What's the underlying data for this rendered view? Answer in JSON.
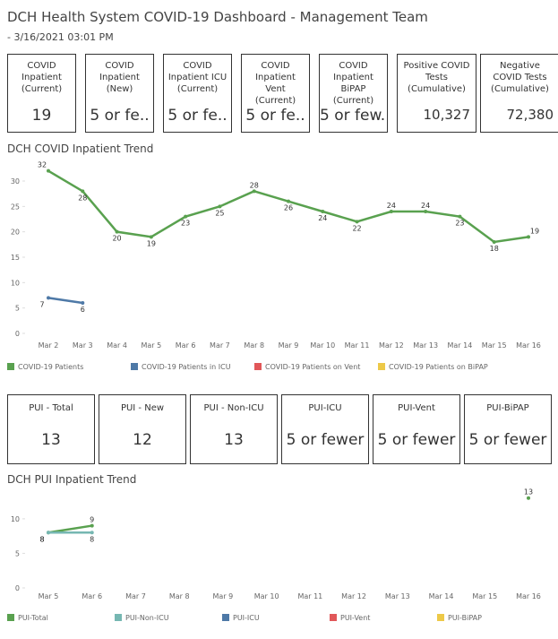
{
  "header": {
    "title": "DCH Health System COVID-19 Dashboard - Management Team",
    "subtitle": "- 3/16/2021 03:01 PM"
  },
  "kpis_top": [
    {
      "label": "COVID Inpatient (Current)",
      "value": "19"
    },
    {
      "label": "COVID Inpatient (New)",
      "value": "5 or fe.."
    },
    {
      "label": "COVID Inpatient ICU (Current)",
      "value": "5 or fe.."
    },
    {
      "label": "COVID Inpatient Vent (Current)",
      "value": "5 or fe.."
    },
    {
      "label": "COVID Inpatient BiPAP (Current)",
      "value": "5 or few.."
    },
    {
      "label": "Positive COVID Tests (Cumulative)",
      "value": "10,327"
    },
    {
      "label": "Negative COVID Tests (Cumulative)",
      "value": "72,380"
    }
  ],
  "kpis_pui": [
    {
      "label": "PUI - Total",
      "value": "13"
    },
    {
      "label": "PUI - New",
      "value": "12"
    },
    {
      "label": "PUI - Non-ICU",
      "value": "13"
    },
    {
      "label": "PUI-ICU",
      "value": "5 or fewer"
    },
    {
      "label": "PUI-Vent",
      "value": "5 or fewer"
    },
    {
      "label": "PUI-BiPAP",
      "value": "5 or fewer"
    }
  ],
  "chart_data": [
    {
      "type": "line",
      "title": "DCH COVID Inpatient Trend",
      "categories": [
        "Mar 2",
        "Mar 3",
        "Mar 4",
        "Mar 5",
        "Mar 6",
        "Mar 7",
        "Mar 8",
        "Mar 9",
        "Mar 10",
        "Mar 11",
        "Mar 12",
        "Mar 13",
        "Mar 14",
        "Mar 15",
        "Mar 16"
      ],
      "series": [
        {
          "name": "COVID-19 Patients",
          "color": "#59a14f",
          "values": [
            32,
            28,
            20,
            19,
            23,
            25,
            28,
            26,
            24,
            22,
            24,
            24,
            23,
            18,
            19
          ]
        },
        {
          "name": "COVID-19 Patients in ICU",
          "color": "#4e79a7",
          "values": [
            7,
            6,
            null,
            null,
            null,
            null,
            null,
            null,
            null,
            null,
            null,
            null,
            null,
            null,
            null
          ]
        },
        {
          "name": "COVID-19 Patients on Vent",
          "color": "#e15759",
          "values": [
            null,
            null,
            null,
            null,
            null,
            null,
            null,
            null,
            null,
            null,
            null,
            null,
            null,
            null,
            null
          ]
        },
        {
          "name": "COVID-19 Patients on BiPAP",
          "color": "#edc948",
          "values": [
            null,
            null,
            null,
            null,
            null,
            null,
            null,
            null,
            null,
            null,
            null,
            null,
            null,
            null,
            null
          ]
        }
      ],
      "ylim": [
        0,
        33
      ],
      "yticks": [
        0,
        5,
        10,
        15,
        20,
        25,
        30
      ],
      "legend": "bottom"
    },
    {
      "type": "line",
      "title": "DCH PUI Inpatient Trend",
      "categories": [
        "Mar 5",
        "Mar 6",
        "Mar 7",
        "Mar 8",
        "Mar 9",
        "Mar 10",
        "Mar 11",
        "Mar 12",
        "Mar 13",
        "Mar 14",
        "Mar 15",
        "Mar 16"
      ],
      "series": [
        {
          "name": "PUI-Total",
          "color": "#59a14f",
          "values": [
            8,
            9,
            null,
            null,
            null,
            null,
            null,
            null,
            null,
            null,
            null,
            13
          ]
        },
        {
          "name": "PUI-Non-ICU",
          "color": "#76b7b2",
          "values": [
            8,
            8,
            null,
            null,
            null,
            null,
            null,
            null,
            null,
            null,
            null,
            null
          ]
        },
        {
          "name": "PUI-ICU",
          "color": "#4e79a7",
          "values": [
            null,
            null,
            null,
            null,
            null,
            null,
            null,
            null,
            null,
            null,
            null,
            null
          ]
        },
        {
          "name": "PUI-Vent",
          "color": "#e15759",
          "values": [
            null,
            null,
            null,
            null,
            null,
            null,
            null,
            null,
            null,
            null,
            null,
            null
          ]
        },
        {
          "name": "PUI-BiPAP",
          "color": "#edc948",
          "values": [
            null,
            null,
            null,
            null,
            null,
            null,
            null,
            null,
            null,
            null,
            null,
            null
          ]
        }
      ],
      "ylim": [
        0,
        14
      ],
      "yticks": [
        0,
        5,
        10
      ],
      "legend": "bottom"
    }
  ]
}
